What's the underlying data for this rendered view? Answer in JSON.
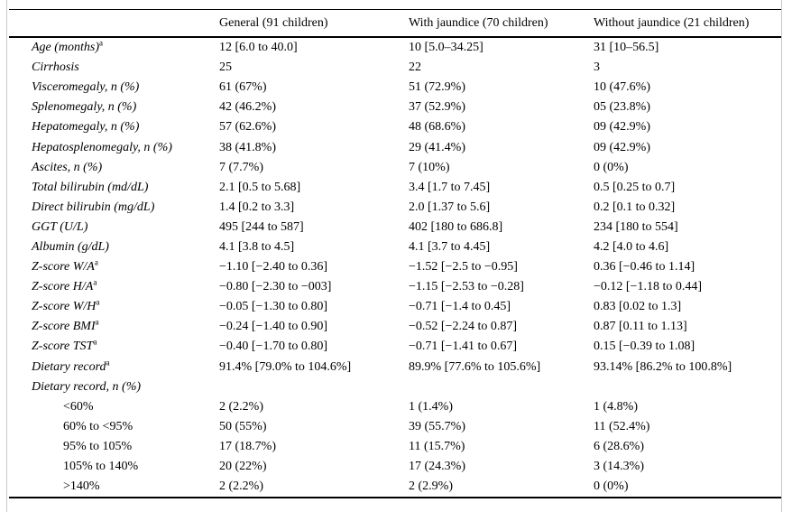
{
  "table": {
    "columns": [
      "",
      "General (91 children)",
      "With jaundice (70 children)",
      "Without jaundice (21 children)"
    ],
    "rows": [
      {
        "label": "Age (months)",
        "sup": "a",
        "italic": true,
        "indent": false,
        "values": [
          "12 [6.0 to 40.0]",
          "10 [5.0–34.25]",
          "31 [10–56.5]"
        ]
      },
      {
        "label": "Cirrhosis",
        "sup": "",
        "italic": true,
        "indent": false,
        "values": [
          "25",
          "22",
          "3"
        ]
      },
      {
        "label": "Visceromegaly, n (%)",
        "sup": "",
        "italic": true,
        "indent": false,
        "values": [
          "61 (67%)",
          "51 (72.9%)",
          "10 (47.6%)"
        ]
      },
      {
        "label": "Splenomegaly, n (%)",
        "sup": "",
        "italic": true,
        "indent": false,
        "values": [
          "42 (46.2%)",
          "37 (52.9%)",
          "05 (23.8%)"
        ]
      },
      {
        "label": "Hepatomegaly, n (%)",
        "sup": "",
        "italic": true,
        "indent": false,
        "values": [
          "57 (62.6%)",
          "48 (68.6%)",
          "09 (42.9%)"
        ]
      },
      {
        "label": "Hepatosplenomegaly, n (%)",
        "sup": "",
        "italic": true,
        "indent": false,
        "values": [
          "38 (41.8%)",
          "29 (41.4%)",
          "09 (42.9%)"
        ]
      },
      {
        "label": "Ascites, n (%)",
        "sup": "",
        "italic": true,
        "indent": false,
        "values": [
          "7 (7.7%)",
          "7 (10%)",
          "0 (0%)"
        ]
      },
      {
        "label": "Total bilirubin (md/dL)",
        "sup": "",
        "italic": true,
        "indent": false,
        "values": [
          "2.1 [0.5 to 5.68]",
          "3.4 [1.7 to 7.45]",
          "0.5 [0.25 to 0.7]"
        ]
      },
      {
        "label": "Direct bilirubin (mg/dL)",
        "sup": "",
        "italic": true,
        "indent": false,
        "values": [
          "1.4 [0.2 to 3.3]",
          "2.0 [1.37 to 5.6]",
          "0.2 [0.1 to 0.32]"
        ]
      },
      {
        "label": "GGT (U/L)",
        "sup": "",
        "italic": true,
        "indent": false,
        "values": [
          "495 [244 to 587]",
          "402 [180 to 686.8]",
          "234 [180 to 554]"
        ]
      },
      {
        "label": "Albumin (g/dL)",
        "sup": "",
        "italic": true,
        "indent": false,
        "values": [
          "4.1 [3.8 to 4.5]",
          "4.1 [3.7 to 4.45]",
          "4.2 [4.0 to 4.6]"
        ]
      },
      {
        "label": "Z-score W/A",
        "sup": "a",
        "italic": true,
        "indent": false,
        "values": [
          "−1.10 [−2.40 to 0.36]",
          "−1.52 [−2.5 to −0.95]",
          "0.36 [−0.46 to 1.14]"
        ]
      },
      {
        "label": "Z-score H/A",
        "sup": "a",
        "italic": true,
        "indent": false,
        "values": [
          "−0.80 [−2.30 to −003]",
          "−1.15 [−2.53 to −0.28]",
          "−0.12 [−1.18 to 0.44]"
        ]
      },
      {
        "label": "Z-score W/H",
        "sup": "a",
        "italic": true,
        "indent": false,
        "values": [
          "−0.05 [−1.30 to 0.80]",
          "−0.71 [−1.4 to 0.45]",
          "0.83 [0.02 to 1.3]"
        ]
      },
      {
        "label": "Z-score BMI",
        "sup": "a",
        "italic": true,
        "indent": false,
        "values": [
          "−0.24 [−1.40 to 0.90]",
          "−0.52 [−2.24 to 0.87]",
          "0.87 [0.11 to 1.13]"
        ]
      },
      {
        "label": "Z-score TST",
        "sup": "a",
        "italic": true,
        "indent": false,
        "values": [
          "−0.40 [−1.70 to 0.80]",
          "−0.71 [−1.41 to 0.67]",
          "0.15 [−0.39 to 1.08]"
        ]
      },
      {
        "label": "Dietary record",
        "sup": "a",
        "italic": true,
        "indent": false,
        "values": [
          "91.4% [79.0% to 104.6%]",
          "89.9% [77.6% to 105.6%]",
          "93.14% [86.2% to 100.8%]"
        ]
      },
      {
        "label": "Dietary record, n (%)",
        "sup": "",
        "italic": true,
        "indent": false,
        "values": [
          "",
          "",
          ""
        ]
      },
      {
        "label": "<60%",
        "sup": "",
        "italic": false,
        "indent": true,
        "values": [
          "2 (2.2%)",
          "1 (1.4%)",
          "1 (4.8%)"
        ]
      },
      {
        "label": "60% to <95%",
        "sup": "",
        "italic": false,
        "indent": true,
        "values": [
          "50 (55%)",
          "39 (55.7%)",
          "11 (52.4%)"
        ]
      },
      {
        "label": "95% to 105%",
        "sup": "",
        "italic": false,
        "indent": true,
        "values": [
          "17 (18.7%)",
          "11 (15.7%)",
          "6 (28.6%)"
        ]
      },
      {
        "label": "105% to 140%",
        "sup": "",
        "italic": false,
        "indent": true,
        "values": [
          "20 (22%)",
          "17 (24.3%)",
          "3 (14.3%)"
        ]
      },
      {
        "label": ">140%",
        "sup": "",
        "italic": false,
        "indent": true,
        "values": [
          "2 (2.2%)",
          "2 (2.9%)",
          "0 (0%)"
        ]
      }
    ]
  }
}
